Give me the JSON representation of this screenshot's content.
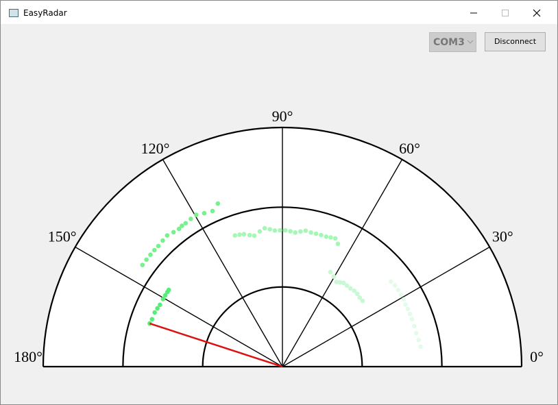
{
  "window": {
    "title": "EasyRadar"
  },
  "controls": {
    "port": "COM3",
    "button": "Disconnect"
  },
  "chart_data": {
    "type": "polar-scatter",
    "angle_ticks": [
      {
        "value": 0,
        "label": "0°"
      },
      {
        "value": 30,
        "label": "30°"
      },
      {
        "value": 60,
        "label": "60°"
      },
      {
        "value": 90,
        "label": "90°"
      },
      {
        "value": 120,
        "label": "120°"
      },
      {
        "value": 150,
        "label": "150°"
      },
      {
        "value": 180,
        "label": "180°"
      }
    ],
    "rlim": [
      0,
      3
    ],
    "rticks": [
      1,
      2,
      3
    ],
    "sweep_angle": 162,
    "sweep_color": "#dd1111",
    "series": [
      {
        "color": "#55ee77",
        "angles": [
          162,
          160,
          157,
          155,
          153.2,
          150.5,
          148.7,
          147,
          146
        ],
        "values": [
          1.75,
          1.74,
          1.74,
          1.73,
          1.72,
          1.72,
          1.72,
          1.72,
          1.72
        ]
      },
      {
        "color": "#77f08e",
        "angles": [
          144,
          141.8,
          139.7,
          137.7,
          135.8,
          133.5,
          131.3,
          129,
          126.9,
          125.5,
          124,
          121.8,
          119.6,
          117,
          114.2,
          111.6
        ],
        "values": [
          2.17,
          2.17,
          2.17,
          2.17,
          2.17,
          2.18,
          2.19,
          2.17,
          2.16,
          2.17,
          2.17,
          2.18,
          2.19,
          2.16,
          2.14,
          2.2
        ]
      },
      {
        "color": "#a6f7b6",
        "angles": [
          109.9,
          108,
          106.2,
          104,
          102.1,
          99.5,
          97.3,
          95.2,
          93.2,
          91,
          88.8,
          86.6,
          84.5,
          82.4,
          80.3,
          78,
          75.8,
          73.6,
          71.4,
          69.5,
          67.6,
          65.7
        ],
        "values": [
          1.75,
          1.74,
          1.73,
          1.7,
          1.68,
          1.72,
          1.75,
          1.73,
          1.71,
          1.71,
          1.71,
          1.7,
          1.69,
          1.71,
          1.73,
          1.72,
          1.72,
          1.72,
          1.72,
          1.73,
          1.74,
          1.69
        ]
      },
      {
        "color": "#c8f9d3",
        "angles": [
          63.1,
          60.3,
          57.5,
          55.7,
          53.9,
          51.5,
          49,
          46.6,
          44.2,
          41.8,
          39.4
        ],
        "values": [
          1.33,
          1.3,
          1.26,
          1.28,
          1.3,
          1.3,
          1.3,
          1.31,
          1.31,
          1.3,
          1.3
        ]
      },
      {
        "color": "#e3fbe9",
        "angles": [
          38.1,
          35.8,
          33.5,
          31.2,
          29,
          26.8,
          24.7,
          22.4,
          20.1,
          17.1,
          14.1,
          11.1,
          8.2
        ],
        "values": [
          1.73,
          1.74,
          1.74,
          1.74,
          1.74,
          1.73,
          1.73,
          1.73,
          1.73,
          1.73,
          1.73,
          1.74,
          1.75
        ]
      }
    ]
  }
}
